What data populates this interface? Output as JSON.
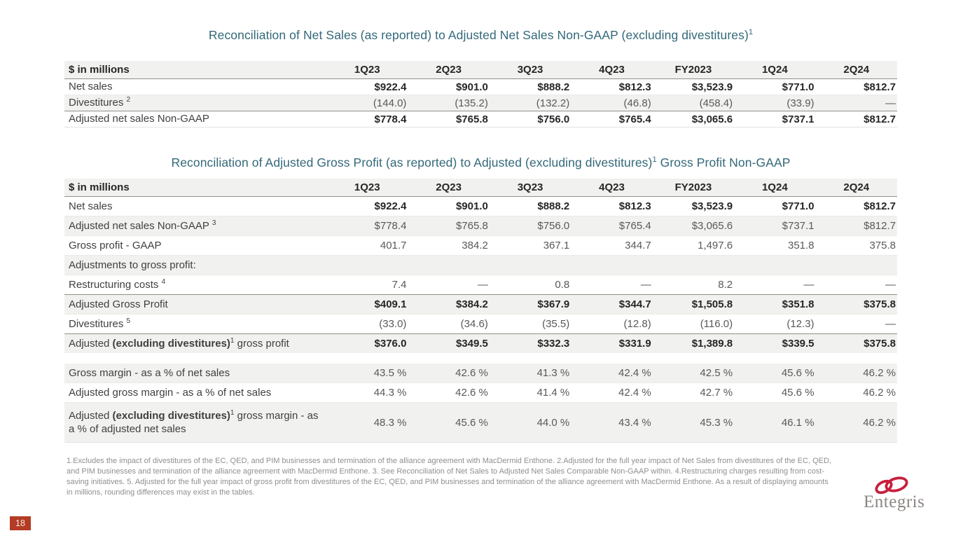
{
  "slide": {
    "page_number": "18",
    "footnotes": "1.Excludes the impact of divestitures of the EC, QED, and PIM businesses and termination of the alliance agreement with MacDermid Enthone. 2.Adjusted for the full year impact of Net Sales from divestitures of the EC, QED, and PIM businesses and termination of the alliance agreement with MacDermid Enthone. 3. See Reconciliation of Net Sales to Adjusted Net Sales Comparable Non-GAAP within. 4.Restructuring charges resulting from cost-saving initiatives. 5. Adjusted for the full year impact of gross profit from divestitures of the EC, QED, and PIM businesses and termination of the alliance agreement with MacDermid Enthone. As a result of displaying amounts in millions, rounding differences may exist in the tables."
  },
  "logo": {
    "text": "Entegris",
    "ring_color": "#c5203c",
    "text_color": "#8b8683"
  },
  "colors": {
    "title_teal": "#336879",
    "shaded_row": "#f1f1ef",
    "dark_rule": "#8f8f8b",
    "page_badge_bg": "#b43b24",
    "bold_value_text": "#262626",
    "normal_value_text": "#595959",
    "footnote_text": "#8f8f8f"
  },
  "tables": [
    {
      "id": "net-sales-reconciliation",
      "title_parts": [
        {
          "t": "Reconciliation of Net Sales (as reported) to Adjusted Net Sales Non-GAAP (excluding divestitures)"
        },
        {
          "t": "1",
          "sup": true
        }
      ],
      "header": [
        "$ in millions",
        "1Q23",
        "2Q23",
        "3Q23",
        "4Q23",
        "FY2023",
        "1Q24",
        "2Q24"
      ],
      "rows": [
        {
          "label": [
            {
              "t": "Net sales"
            }
          ],
          "values": [
            "$922.4",
            "$901.0",
            "$888.2",
            "$812.3",
            "$3,523.9",
            "$771.0",
            "$812.7"
          ],
          "boldValues": true,
          "shaded": false
        },
        {
          "label": [
            {
              "t": "Divestitures "
            },
            {
              "t": "2",
              "sup": true
            }
          ],
          "values": [
            "(144.0)",
            "(135.2)",
            "(132.2)",
            "(46.8)",
            "(458.4)",
            "(33.9)",
            "—"
          ],
          "shaded": true
        },
        {
          "label": [
            {
              "t": "Adjusted net sales Non-GAAP"
            }
          ],
          "values": [
            "$778.4",
            "$765.8",
            "$756.0",
            "$765.4",
            "$3,065.6",
            "$737.1",
            "$812.7"
          ],
          "boldValues": true,
          "topBorder": true,
          "shaded": false
        }
      ]
    },
    {
      "id": "gross-profit-reconciliation",
      "title_parts": [
        {
          "t": "Reconciliation of Adjusted Gross Profit (as reported) to Adjusted (excluding divestitures)"
        },
        {
          "t": "1",
          "sup": true
        },
        {
          "t": " Gross Profit Non-GAAP"
        }
      ],
      "header": [
        "$ in millions",
        "1Q23",
        "2Q23",
        "3Q23",
        "4Q23",
        "FY2023",
        "1Q24",
        "2Q24"
      ],
      "rows": [
        {
          "label": [
            {
              "t": "Net sales"
            }
          ],
          "values": [
            "$922.4",
            "$901.0",
            "$888.2",
            "$812.3",
            "$3,523.9",
            "$771.0",
            "$812.7"
          ],
          "boldValues": true,
          "shaded": false
        },
        {
          "label": [
            {
              "t": "Adjusted net sales Non-GAAP "
            },
            {
              "t": "3",
              "sup": true
            }
          ],
          "values": [
            "$778.4",
            "$765.8",
            "$756.0",
            "$765.4",
            "$3,065.6",
            "$737.1",
            "$812.7"
          ],
          "shaded": true
        },
        {
          "label": [
            {
              "t": "Gross profit - GAAP"
            }
          ],
          "values": [
            "401.7",
            "384.2",
            "367.1",
            "344.7",
            "1,497.6",
            "351.8",
            "375.8"
          ],
          "shaded": false
        },
        {
          "label": [
            {
              "t": "Adjustments to gross profit:"
            }
          ],
          "values": [
            "",
            "",
            "",
            "",
            "",
            "",
            ""
          ],
          "shaded": true
        },
        {
          "label": [
            {
              "t": "Restructuring costs "
            },
            {
              "t": "4",
              "sup": true
            }
          ],
          "values": [
            "7.4",
            "—",
            "0.8",
            "—",
            "8.2",
            "—",
            "—"
          ],
          "shaded": false
        },
        {
          "label": [
            {
              "t": "Adjusted Gross Profit"
            }
          ],
          "values": [
            "$409.1",
            "$384.2",
            "$367.9",
            "$344.7",
            "$1,505.8",
            "$351.8",
            "$375.8"
          ],
          "boldValues": true,
          "topBorder": true,
          "shaded": true
        },
        {
          "label": [
            {
              "t": "Divestitures "
            },
            {
              "t": "5",
              "sup": true
            }
          ],
          "values": [
            "(33.0)",
            "(34.6)",
            "(35.5)",
            "(12.8)",
            "(116.0)",
            "(12.3)",
            "—"
          ],
          "shaded": false
        },
        {
          "label": [
            {
              "t": "Adjusted "
            },
            {
              "t": "(excluding divestitures)",
              "b": true
            },
            {
              "t": "1",
              "sup": true
            },
            {
              "t": " gross profit"
            }
          ],
          "values": [
            "$376.0",
            "$349.5",
            "$332.3",
            "$331.9",
            "$1,389.8",
            "$339.5",
            "$375.8"
          ],
          "boldValues": true,
          "topBorder": true,
          "shaded": true
        },
        {
          "label": [
            {
              "t": "Gross margin - as a % of net sales"
            }
          ],
          "values": [
            "43.5 %",
            "42.6 %",
            "41.3 %",
            "42.4 %",
            "42.5 %",
            "45.6 %",
            "46.2 %"
          ],
          "shaded": true,
          "gapBefore": true
        },
        {
          "label": [
            {
              "t": "Adjusted gross margin - as a % of net sales"
            }
          ],
          "values": [
            "44.3 %",
            "42.6 %",
            "41.4 %",
            "42.4 %",
            "42.7 %",
            "45.6 %",
            "46.2 %"
          ],
          "shaded": false
        },
        {
          "label": [
            {
              "t": "Adjusted "
            },
            {
              "t": "(excluding divestitures)",
              "b": true
            },
            {
              "t": "1",
              "sup": true
            },
            {
              "t": " gross margin - as a % of adjusted net sales"
            }
          ],
          "values": [
            "48.3 %",
            "45.6 %",
            "44.0 %",
            "43.4 %",
            "45.3 %",
            "46.1 %",
            "46.2 %"
          ],
          "shaded": true,
          "tall": true
        }
      ]
    }
  ]
}
